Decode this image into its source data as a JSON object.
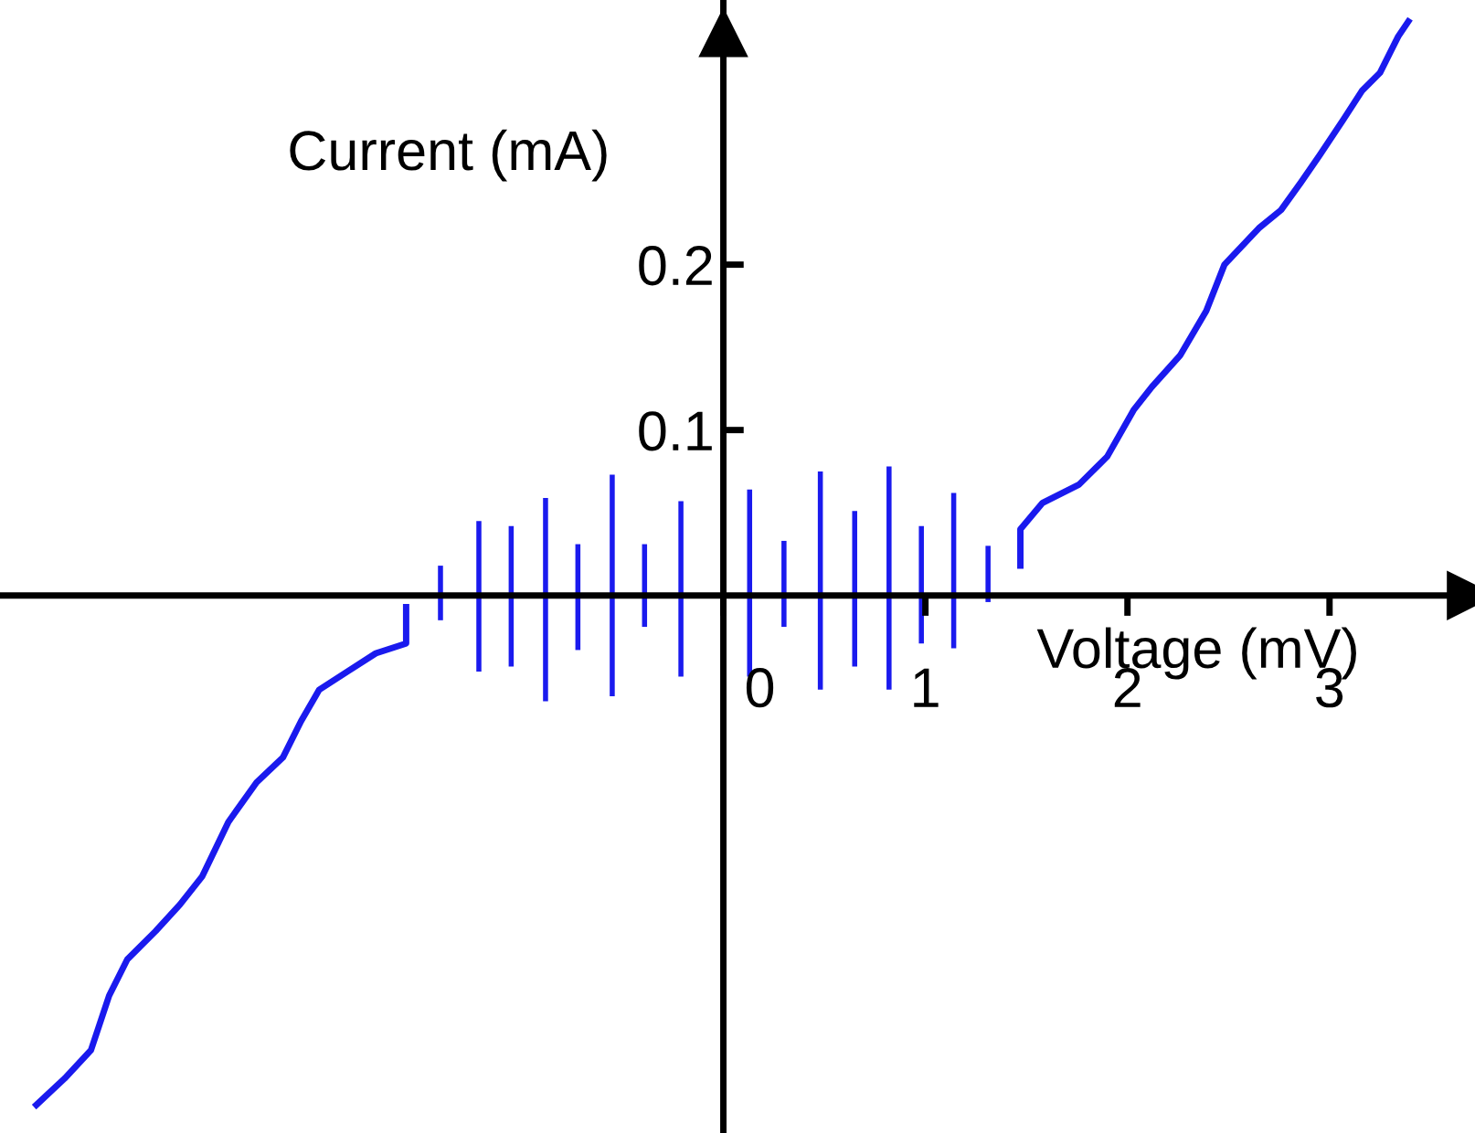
{
  "chart_data": {
    "type": "line",
    "xlabel": "Voltage (mV)",
    "ylabel": "Current (mA)",
    "xlim": [
      -3.58,
      3.72
    ],
    "ylim": [
      -0.325,
      0.36
    ],
    "xticks": [
      0,
      1,
      2,
      3
    ],
    "yticks": [
      0.1,
      0.2
    ],
    "grid": false,
    "legend": false,
    "marker": "none",
    "line_style": "solid",
    "series": [
      {
        "color": "#1a1aee",
        "x": [
          1.47,
          1.47,
          1.58,
          1.76,
          1.9,
          2.03,
          2.12,
          2.26,
          2.39,
          2.48,
          2.65,
          2.76,
          2.86,
          2.95,
          3.07,
          3.16,
          3.25,
          3.34,
          3.39
        ],
        "values": [
          0.018,
          0.04,
          0.056,
          0.067,
          0.084,
          0.112,
          0.126,
          0.145,
          0.172,
          0.2,
          0.222,
          0.233,
          0.25,
          0.266,
          0.288,
          0.305,
          0.316,
          0.338,
          0.347
        ]
      },
      {
        "color": "#1a1aee",
        "x": [
          -1.57,
          -1.57,
          -1.72,
          -1.86,
          -2.0,
          -2.09,
          -2.18,
          -2.31,
          -2.45,
          -2.58,
          -2.69,
          -2.81,
          -2.95,
          -3.04,
          -3.13,
          -3.26,
          -3.4
        ],
        "values": [
          -0.007,
          -0.029,
          -0.035,
          -0.046,
          -0.057,
          -0.076,
          -0.098,
          -0.113,
          -0.137,
          -0.17,
          -0.187,
          -0.203,
          -0.22,
          -0.242,
          -0.275,
          -0.292,
          -0.308
        ]
      },
      {
        "type": "bar",
        "color": "#1a1aee",
        "x": [
          -1.4,
          -1.21,
          -1.05,
          -0.88,
          -0.72,
          -0.55,
          -0.39,
          -0.21,
          0.13,
          0.3,
          0.48,
          0.65,
          0.82,
          0.98,
          1.14,
          1.31
        ],
        "values": [
          0.033,
          0.091,
          0.085,
          0.123,
          0.064,
          0.134,
          0.05,
          0.106,
          0.113,
          0.052,
          0.132,
          0.094,
          0.135,
          0.071,
          0.094,
          0.034
        ],
        "base": [
          -0.015,
          -0.046,
          -0.043,
          -0.064,
          -0.033,
          -0.061,
          -0.019,
          -0.049,
          -0.049,
          -0.019,
          -0.057,
          -0.043,
          -0.057,
          -0.029,
          -0.032,
          -0.004
        ]
      }
    ]
  }
}
